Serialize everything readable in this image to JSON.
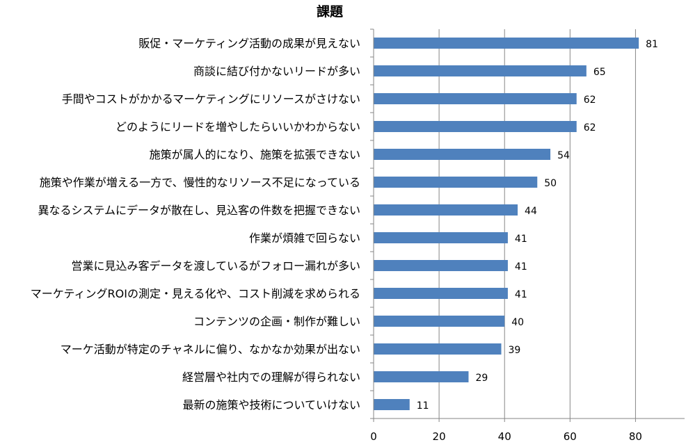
{
  "chart_data": {
    "type": "bar",
    "orientation": "horizontal",
    "title": "課題",
    "xlabel": "",
    "ylabel": "",
    "categories": [
      "販促・マーケティング活動の成果が見えない",
      "商談に結び付かないリードが多い",
      "手間やコストがかかるマーケティングにリソースがさけない",
      "どのようにリードを増やしたらいいかわからない",
      "施策が属人的になり、施策を拡張できない",
      "施策や作業が増える一方で、慢性的なリソース不足になっている",
      "異なるシステムにデータが散在し、見込客の件数を把握できない",
      "作業が煩雑で回らない",
      "営業に見込み客データを渡しているがフォロー漏れが多い",
      "マーケティングROIの測定・見える化や、コスト削減を求められる",
      "コンテンツの企画・制作が難しい",
      "マーケ活動が特定のチャネルに偏り、なかなか効果が出ない",
      "経営層や社内での理解が得られない",
      "最新の施策や技術についていけない"
    ],
    "values": [
      81,
      65,
      62,
      62,
      54,
      50,
      44,
      41,
      41,
      41,
      40,
      39,
      29,
      11
    ],
    "xlim": [
      0,
      95
    ],
    "xticks": [
      0,
      20,
      40,
      60,
      80
    ],
    "grid": true,
    "legend": "none",
    "bar_color": "#4f81bd",
    "grid_color": "#868686"
  }
}
